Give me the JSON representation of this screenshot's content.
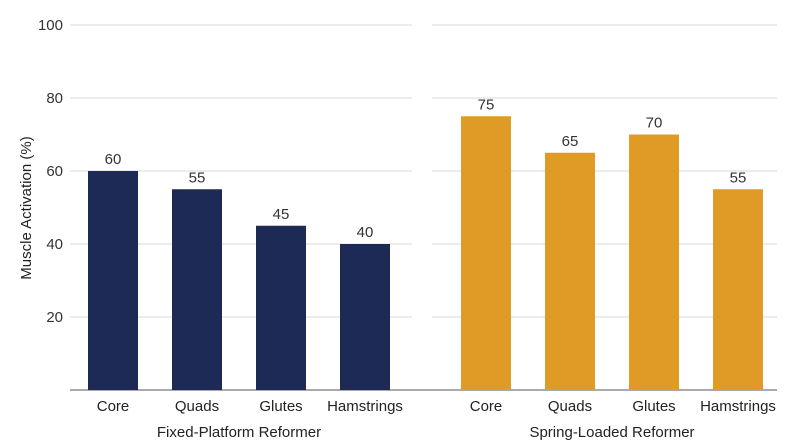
{
  "chart_data": {
    "type": "bar",
    "title": "",
    "ylabel": "Muscle Activation (%)",
    "ylim": [
      0,
      100
    ],
    "yticks": [
      20,
      40,
      60,
      80,
      100
    ],
    "grid": true,
    "show_data_labels": true,
    "panels": [
      {
        "group_label": "Fixed-Platform Reformer",
        "color": "#1c2a55",
        "categories": [
          "Core",
          "Quads",
          "Glutes",
          "Hamstrings"
        ],
        "values": [
          60,
          55,
          45,
          40
        ]
      },
      {
        "group_label": "Spring-Loaded Reformer",
        "color": "#e09a26",
        "categories": [
          "Core",
          "Quads",
          "Glutes",
          "Hamstrings"
        ],
        "values": [
          75,
          65,
          70,
          55
        ]
      }
    ]
  }
}
